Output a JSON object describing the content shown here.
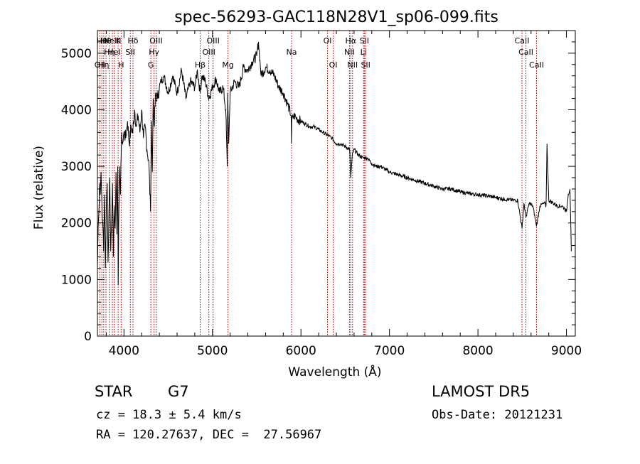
{
  "chart_data": {
    "type": "line",
    "title": "spec-56293-GAC118N28V1_sp06-099.fits",
    "xlabel": "Wavelength (Å)",
    "ylabel": "Flux (relative)",
    "xlim": [
      3700,
      9100
    ],
    "ylim": [
      0,
      5400
    ],
    "xticks": [
      4000,
      5000,
      6000,
      7000,
      8000,
      9000
    ],
    "yticks": [
      0,
      1000,
      2000,
      3000,
      4000,
      5000
    ],
    "grid": false,
    "legend": "none",
    "series": [
      {
        "color": "#000000",
        "x": [
          3700,
          3708,
          3716,
          3724,
          3732,
          3740,
          3750,
          3760,
          3770,
          3780,
          3790,
          3800,
          3810,
          3820,
          3830,
          3840,
          3850,
          3860,
          3870,
          3880,
          3890,
          3900,
          3910,
          3920,
          3930,
          3935,
          3940,
          3950,
          3960,
          3968,
          3975,
          3985,
          4000,
          4020,
          4040,
          4060,
          4080,
          4100,
          4120,
          4140,
          4160,
          4180,
          4200,
          4220,
          4240,
          4260,
          4280,
          4300,
          4310,
          4320,
          4330,
          4340,
          4360,
          4380,
          4400,
          4420,
          4450,
          4500,
          4550,
          4600,
          4650,
          4700,
          4750,
          4800,
          4830,
          4861,
          4880,
          4920,
          4960,
          5000,
          5040,
          5080,
          5120,
          5150,
          5167,
          5172,
          5183,
          5200,
          5250,
          5300,
          5350,
          5400,
          5450,
          5500,
          5520,
          5550,
          5600,
          5650,
          5700,
          5750,
          5800,
          5850,
          5890,
          5893,
          5896,
          5920,
          5950,
          6000,
          6050,
          6100,
          6150,
          6200,
          6250,
          6300,
          6350,
          6400,
          6450,
          6500,
          6550,
          6563,
          6580,
          6600,
          6650,
          6700,
          6750,
          6800,
          6850,
          6900,
          6950,
          7000,
          7100,
          7200,
          7300,
          7400,
          7500,
          7600,
          7700,
          7800,
          7900,
          8000,
          8100,
          8200,
          8300,
          8400,
          8450,
          8498,
          8520,
          8542,
          8580,
          8620,
          8662,
          8700,
          8750,
          8770,
          8780,
          8800,
          8850,
          8900,
          8950,
          8980,
          9000,
          9020,
          9040,
          9055
        ],
        "y": [
          1200,
          1900,
          2200,
          2700,
          2500,
          2900,
          2400,
          2000,
          1500,
          2500,
          1200,
          2200,
          2700,
          1300,
          2200,
          2800,
          1500,
          2000,
          2700,
          1400,
          2300,
          1900,
          2900,
          1800,
          3000,
          900,
          2000,
          3000,
          2500,
          3200,
          3600,
          3400,
          3600,
          3500,
          3800,
          3400,
          3700,
          3600,
          4000,
          3700,
          3900,
          3600,
          4000,
          3500,
          3700,
          3300,
          3100,
          2200,
          3800,
          2900,
          4200,
          3700,
          4300,
          4200,
          4400,
          4500,
          4600,
          4300,
          4600,
          4300,
          4700,
          4200,
          4500,
          4400,
          4700,
          4300,
          4600,
          4500,
          4200,
          4400,
          4550,
          4300,
          4400,
          4000,
          3000,
          4300,
          3400,
          4300,
          4500,
          4400,
          4750,
          4700,
          4850,
          4950,
          5200,
          4600,
          4750,
          4700,
          4600,
          4400,
          4300,
          4100,
          3900,
          3400,
          3800,
          3900,
          3850,
          3800,
          3750,
          3700,
          3700,
          3650,
          3600,
          3550,
          3500,
          3400,
          3400,
          3350,
          3300,
          2800,
          3200,
          3300,
          3200,
          3150,
          3150,
          3050,
          3000,
          3000,
          2950,
          2900,
          2850,
          2800,
          2750,
          2700,
          2650,
          2600,
          2600,
          2550,
          2520,
          2500,
          2480,
          2450,
          2420,
          2400,
          2400,
          1900,
          2350,
          2100,
          2350,
          2300,
          1950,
          2300,
          2350,
          2300,
          3400,
          2400,
          2350,
          2300,
          2300,
          2250,
          2200,
          2500,
          2600,
          1500
        ]
      }
    ],
    "line_markers": [
      {
        "x": 3727,
        "label": "OII",
        "row": 3
      },
      {
        "x": 3750,
        "label": "Hθ",
        "row": 1
      },
      {
        "x": 3771,
        "label": "Hη",
        "row": 3
      },
      {
        "x": 3797,
        "label": "Hθ",
        "row": 1
      },
      {
        "x": 3835,
        "label": "Hη",
        "row": 2
      },
      {
        "x": 3869,
        "label": "NeIII",
        "row": 1
      },
      {
        "x": 3889,
        "label": "HeI",
        "row": 2
      },
      {
        "x": 3934,
        "label": "K",
        "row": 1
      },
      {
        "x": 3968,
        "label": "H",
        "row": 3
      },
      {
        "x": 4072,
        "label": "SII",
        "row": 2
      },
      {
        "x": 4102,
        "label": "Hδ",
        "row": 1
      },
      {
        "x": 4304,
        "label": "G",
        "row": 3
      },
      {
        "x": 4340,
        "label": "Hγ",
        "row": 2
      },
      {
        "x": 4363,
        "label": "OIII",
        "row": 1
      },
      {
        "x": 4861,
        "label": "Hβ",
        "row": 3
      },
      {
        "x": 4959,
        "label": "OIII",
        "row": 2
      },
      {
        "x": 5007,
        "label": "OIII",
        "row": 1
      },
      {
        "x": 5175,
        "label": "Mg",
        "row": 3
      },
      {
        "x": 5894,
        "label": "Na",
        "row": 2
      },
      {
        "x": 6300,
        "label": "OI",
        "row": 1
      },
      {
        "x": 6364,
        "label": "OI",
        "row": 3
      },
      {
        "x": 6548,
        "label": "NII",
        "row": 2
      },
      {
        "x": 6563,
        "label": "Hα",
        "row": 1
      },
      {
        "x": 6583,
        "label": "NII",
        "row": 3
      },
      {
        "x": 6707,
        "label": "Li",
        "row": 2
      },
      {
        "x": 6716,
        "label": "SII",
        "row": 1
      },
      {
        "x": 6731,
        "label": "SII",
        "row": 3
      },
      {
        "x": 8498,
        "label": "CaII",
        "row": 1
      },
      {
        "x": 8542,
        "label": "CaII",
        "row": 2
      },
      {
        "x": 8662,
        "label": "CaII",
        "row": 3
      }
    ]
  },
  "info": {
    "class_label": "STAR",
    "subclass": "G7",
    "cz": "cz = 18.3 ± 5.4 km/s",
    "coords": "RA = 120.27637, DEC =  27.56967",
    "survey": "LAMOST DR5",
    "obs_date": "Obs-Date: 20121231"
  }
}
